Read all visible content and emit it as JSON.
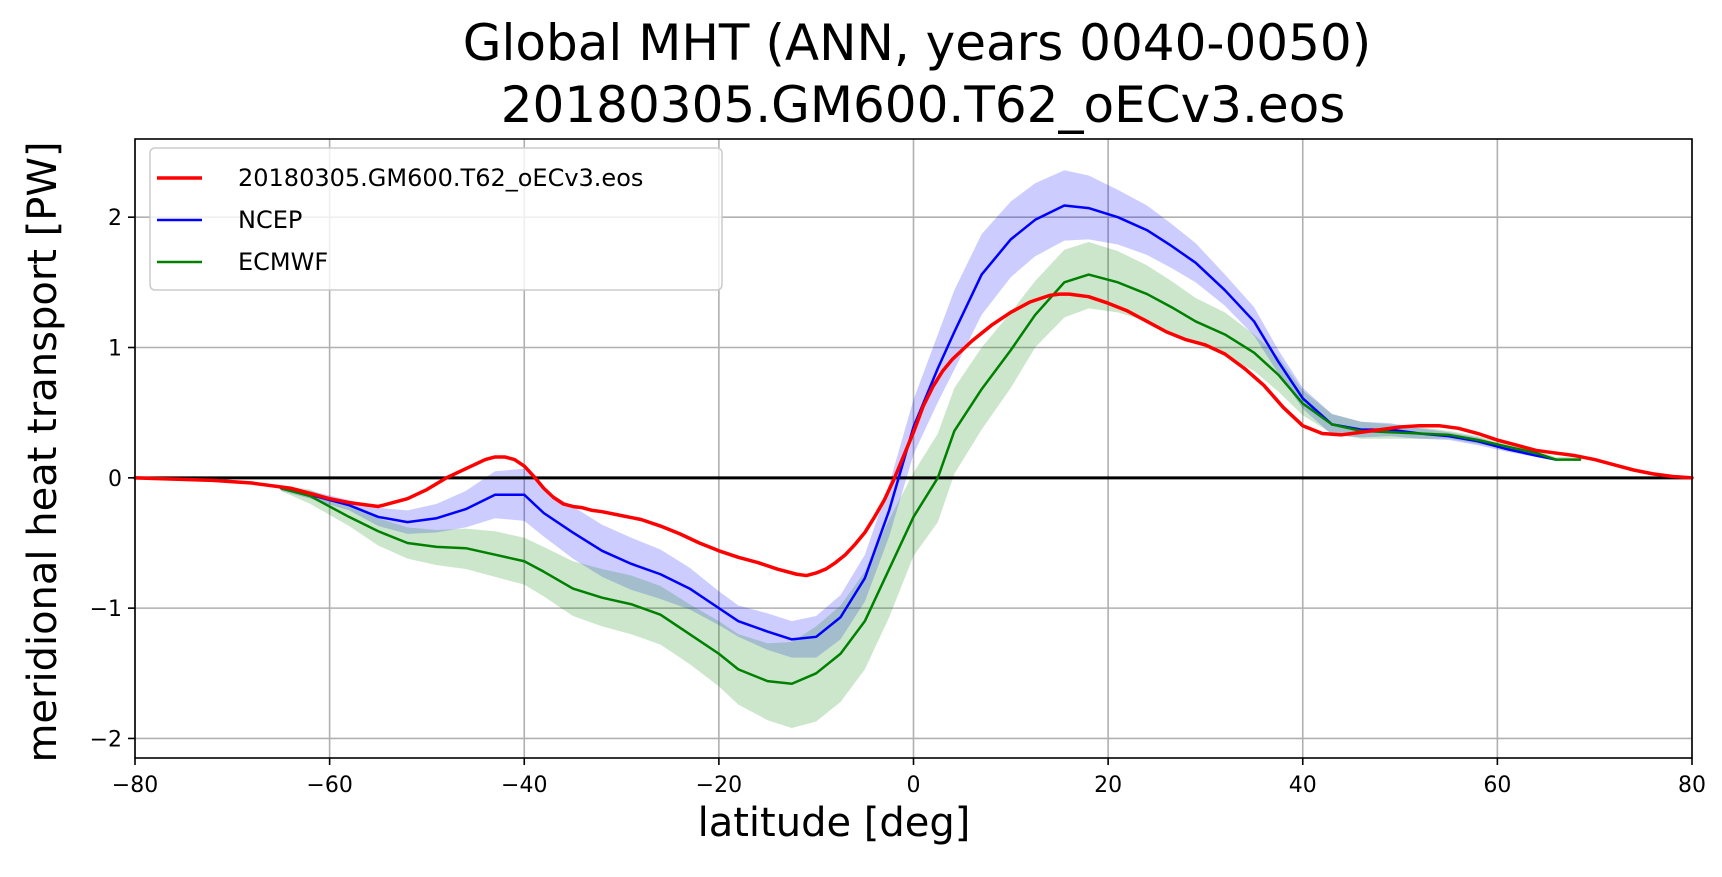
{
  "chart_data": {
    "type": "line",
    "title": "Global MHT (ANN, years 0040-0050)",
    "subtitle": "20180305.GM600.T62_oECv3.eos",
    "xlabel": "latitude [deg]",
    "ylabel": "meridional heat transport [PW]",
    "xlim": [
      -80,
      80
    ],
    "ylim": [
      -2.15,
      2.6
    ],
    "xticks": [
      -80,
      -60,
      -40,
      -20,
      0,
      20,
      40,
      60,
      80
    ],
    "xtick_labels": [
      "−80",
      "−60",
      "−40",
      "−20",
      "0",
      "20",
      "40",
      "60",
      "80"
    ],
    "yticks": [
      -2,
      -1,
      0,
      1,
      2
    ],
    "ytick_labels": [
      "−2",
      "−1",
      "0",
      "1",
      "2"
    ],
    "grid": true,
    "zero_line": true,
    "legend_position": "upper-left",
    "series": [
      {
        "name": "20180305.GM600.T62_oECv3.eos",
        "color": "#ff0000",
        "x": [
          -80,
          -76,
          -72,
          -68,
          -64,
          -60,
          -58,
          -55,
          -52,
          -50,
          -48,
          -46,
          -44,
          -43,
          -42,
          -41,
          -40,
          -39,
          -38,
          -37,
          -36,
          -35,
          -34,
          -33,
          -32,
          -30,
          -28,
          -26,
          -24,
          -22,
          -20,
          -18,
          -16,
          -14,
          -12,
          -11,
          -10,
          -9,
          -8,
          -7,
          -6,
          -5,
          -4,
          -3,
          -2,
          -1,
          0,
          1,
          2,
          3,
          4,
          5,
          6,
          8,
          10,
          12,
          14,
          15,
          16,
          18,
          20,
          22,
          24,
          26,
          28,
          30,
          32,
          34,
          36,
          38,
          40,
          42,
          44,
          46,
          48,
          50,
          52,
          54,
          56,
          58,
          60,
          62,
          64,
          66,
          68,
          70,
          72,
          74,
          76,
          78,
          80
        ],
        "y": [
          0,
          -0.01,
          -0.02,
          -0.04,
          -0.08,
          -0.16,
          -0.19,
          -0.22,
          -0.16,
          -0.09,
          0.0,
          0.07,
          0.14,
          0.16,
          0.16,
          0.14,
          0.09,
          0.01,
          -0.08,
          -0.15,
          -0.2,
          -0.22,
          -0.23,
          -0.25,
          -0.26,
          -0.29,
          -0.32,
          -0.37,
          -0.43,
          -0.5,
          -0.56,
          -0.61,
          -0.65,
          -0.7,
          -0.74,
          -0.75,
          -0.73,
          -0.7,
          -0.65,
          -0.59,
          -0.51,
          -0.42,
          -0.3,
          -0.17,
          -0.01,
          0.17,
          0.35,
          0.55,
          0.7,
          0.82,
          0.91,
          0.98,
          1.05,
          1.17,
          1.27,
          1.35,
          1.4,
          1.41,
          1.41,
          1.39,
          1.34,
          1.28,
          1.2,
          1.12,
          1.06,
          1.02,
          0.95,
          0.84,
          0.71,
          0.54,
          0.4,
          0.34,
          0.33,
          0.35,
          0.37,
          0.39,
          0.4,
          0.4,
          0.38,
          0.34,
          0.29,
          0.25,
          0.21,
          0.19,
          0.17,
          0.14,
          0.1,
          0.06,
          0.03,
          0.01,
          0.0
        ]
      },
      {
        "name": "NCEP",
        "color": "#0000ff",
        "x": [
          -65,
          -62,
          -58,
          -55,
          -52,
          -49,
          -46,
          -43,
          -40,
          -38,
          -35,
          -32,
          -29,
          -26,
          -23,
          -20,
          -18,
          -15,
          -12.5,
          -10,
          -7.5,
          -5,
          -2.5,
          0,
          2.5,
          4.2,
          7,
          10,
          12.5,
          15.5,
          18,
          21,
          24,
          26.5,
          29,
          32,
          35,
          37.5,
          40,
          43,
          46,
          49,
          52,
          55,
          58,
          61,
          64,
          66
        ],
        "y": [
          -0.08,
          -0.13,
          -0.21,
          -0.3,
          -0.34,
          -0.31,
          -0.24,
          -0.13,
          -0.13,
          -0.27,
          -0.42,
          -0.56,
          -0.66,
          -0.74,
          -0.85,
          -1.0,
          -1.1,
          -1.18,
          -1.24,
          -1.22,
          -1.07,
          -0.77,
          -0.25,
          0.39,
          0.84,
          1.12,
          1.56,
          1.83,
          1.98,
          2.09,
          2.07,
          2.0,
          1.9,
          1.78,
          1.65,
          1.44,
          1.2,
          0.89,
          0.61,
          0.41,
          0.37,
          0.37,
          0.34,
          0.32,
          0.28,
          0.22,
          0.17,
          0.14
        ]
      },
      {
        "name": "ECMWF",
        "color": "#008000",
        "x": [
          -65,
          -62,
          -58,
          -55,
          -52,
          -49,
          -46,
          -43,
          -40,
          -38,
          -35,
          -32,
          -29,
          -26,
          -23,
          -20,
          -18,
          -15,
          -12.5,
          -10,
          -7.5,
          -5,
          -2.5,
          0,
          2.5,
          4.2,
          7,
          10,
          12.5,
          15.5,
          18,
          21,
          24,
          26.5,
          29,
          32,
          35,
          37.5,
          40,
          43,
          46,
          49,
          52,
          55,
          58,
          61,
          64,
          66,
          68.5
        ],
        "y": [
          -0.08,
          -0.14,
          -0.3,
          -0.41,
          -0.5,
          -0.53,
          -0.54,
          -0.59,
          -0.64,
          -0.72,
          -0.85,
          -0.92,
          -0.97,
          -1.05,
          -1.2,
          -1.35,
          -1.47,
          -1.56,
          -1.58,
          -1.5,
          -1.35,
          -1.1,
          -0.7,
          -0.3,
          0.0,
          0.36,
          0.68,
          0.98,
          1.25,
          1.5,
          1.56,
          1.5,
          1.41,
          1.31,
          1.2,
          1.1,
          0.96,
          0.79,
          0.57,
          0.41,
          0.36,
          0.35,
          0.34,
          0.33,
          0.29,
          0.24,
          0.19,
          0.14,
          0.14
        ]
      }
    ],
    "bands": [
      {
        "name": "NCEP",
        "color": "#0000ff",
        "opacity": 0.2,
        "x": [
          -65,
          -62,
          -58,
          -55,
          -52,
          -49,
          -46,
          -43,
          -40,
          -38,
          -35,
          -32,
          -29,
          -26,
          -23,
          -20,
          -18,
          -15,
          -12.5,
          -10,
          -7.5,
          -5,
          -2.5,
          0,
          2.5,
          4.2,
          7,
          10,
          12.5,
          15.5,
          18,
          21,
          24,
          26.5,
          29,
          32,
          35,
          37.5,
          40,
          43,
          46,
          49,
          52,
          55,
          58,
          61,
          64,
          66
        ],
        "lower": [
          -0.1,
          -0.16,
          -0.25,
          -0.37,
          -0.43,
          -0.42,
          -0.38,
          -0.31,
          -0.33,
          -0.45,
          -0.62,
          -0.76,
          -0.86,
          -0.93,
          -1.01,
          -1.13,
          -1.22,
          -1.32,
          -1.38,
          -1.38,
          -1.24,
          -0.95,
          -0.45,
          0.18,
          0.58,
          0.83,
          1.25,
          1.54,
          1.7,
          1.82,
          1.83,
          1.79,
          1.71,
          1.61,
          1.5,
          1.32,
          1.09,
          0.8,
          0.53,
          0.33,
          0.31,
          0.32,
          0.3,
          0.29,
          0.25,
          0.2,
          0.16,
          0.13
        ],
        "upper": [
          -0.06,
          -0.1,
          -0.17,
          -0.23,
          -0.25,
          -0.2,
          -0.1,
          0.05,
          0.07,
          -0.09,
          -0.22,
          -0.36,
          -0.46,
          -0.55,
          -0.69,
          -0.87,
          -0.98,
          -1.04,
          -1.1,
          -1.06,
          -0.9,
          -0.59,
          -0.05,
          0.6,
          1.1,
          1.44,
          1.87,
          2.12,
          2.26,
          2.36,
          2.32,
          2.21,
          2.09,
          1.95,
          1.8,
          1.56,
          1.31,
          0.98,
          0.69,
          0.49,
          0.43,
          0.42,
          0.38,
          0.35,
          0.31,
          0.24,
          0.18,
          0.15
        ]
      },
      {
        "name": "ECMWF",
        "color": "#008000",
        "opacity": 0.2,
        "x": [
          -65,
          -62,
          -58,
          -55,
          -52,
          -49,
          -46,
          -43,
          -40,
          -38,
          -35,
          -32,
          -29,
          -26,
          -23,
          -20,
          -18,
          -15,
          -12.5,
          -10,
          -7.5,
          -5,
          -2.5,
          0,
          2.5,
          4.2,
          7,
          10,
          12.5,
          15.5,
          18,
          21,
          24,
          26.5,
          29,
          32,
          35,
          37.5,
          40,
          43,
          46,
          49,
          52,
          55,
          58,
          61,
          64,
          66,
          68.5
        ],
        "lower": [
          -0.1,
          -0.2,
          -0.37,
          -0.52,
          -0.62,
          -0.67,
          -0.7,
          -0.76,
          -0.82,
          -0.91,
          -1.06,
          -1.14,
          -1.2,
          -1.28,
          -1.43,
          -1.6,
          -1.74,
          -1.86,
          -1.92,
          -1.87,
          -1.72,
          -1.47,
          -1.07,
          -0.6,
          -0.34,
          0.03,
          0.37,
          0.69,
          1.0,
          1.23,
          1.3,
          1.27,
          1.2,
          1.12,
          1.03,
          0.94,
          0.82,
          0.66,
          0.48,
          0.34,
          0.3,
          0.3,
          0.3,
          0.3,
          0.26,
          0.22,
          0.18,
          0.13,
          0.13
        ],
        "upper": [
          -0.06,
          -0.09,
          -0.22,
          -0.31,
          -0.38,
          -0.4,
          -0.39,
          -0.41,
          -0.46,
          -0.53,
          -0.64,
          -0.7,
          -0.75,
          -0.83,
          -0.97,
          -1.1,
          -1.2,
          -1.27,
          -1.26,
          -1.14,
          -0.98,
          -0.72,
          -0.32,
          0.04,
          0.34,
          0.69,
          1.0,
          1.27,
          1.51,
          1.75,
          1.81,
          1.74,
          1.63,
          1.51,
          1.38,
          1.27,
          1.1,
          0.93,
          0.67,
          0.49,
          0.43,
          0.41,
          0.39,
          0.36,
          0.32,
          0.26,
          0.21,
          0.16,
          0.16
        ]
      }
    ]
  }
}
